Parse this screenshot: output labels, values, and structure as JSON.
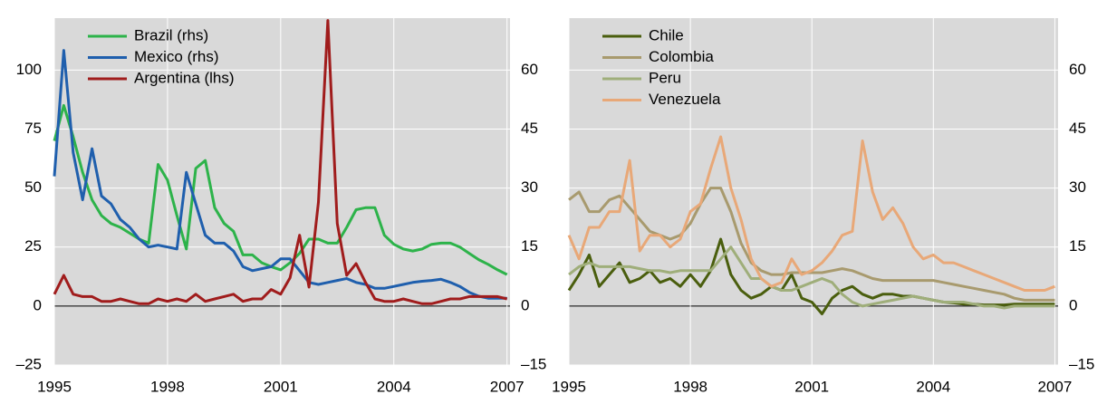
{
  "chart_data": [
    {
      "type": "line",
      "legend": "upper left",
      "grid": true,
      "x": [
        1995,
        1995.25,
        1995.5,
        1995.75,
        1996,
        1996.25,
        1996.5,
        1996.75,
        1997,
        1997.25,
        1997.5,
        1997.75,
        1998,
        1998.25,
        1998.5,
        1998.75,
        1999,
        1999.25,
        1999.5,
        1999.75,
        2000,
        2000.25,
        2000.5,
        2000.75,
        2001,
        2001.25,
        2001.5,
        2001.75,
        2002,
        2002.25,
        2002.5,
        2002.75,
        2003,
        2003.25,
        2003.5,
        2003.75,
        2004,
        2004.25,
        2004.5,
        2004.75,
        2005,
        2005.25,
        2005.5,
        2005.75,
        2006,
        2006.25,
        2006.5,
        2006.75,
        2007
      ],
      "xlim": [
        1995,
        2007.08
      ],
      "xticks": [
        1995,
        1998,
        2001,
        2004,
        2007
      ],
      "ylim": [
        -25,
        122
      ],
      "yticks": [
        {
          "value": -25,
          "label": "–25"
        },
        0,
        25,
        50,
        75,
        100
      ],
      "y2lim": [
        -15,
        73.2
      ],
      "y2ticks": [
        {
          "value": -15,
          "label": "–15"
        },
        0,
        15,
        30,
        45,
        60
      ],
      "series": [
        {
          "name": "Brazil (rhs)",
          "color": "#2db34a",
          "axis": "y2",
          "values": [
            42,
            51,
            43,
            34,
            27,
            23,
            21,
            20,
            18.5,
            17,
            16,
            36,
            32,
            23,
            14.5,
            35,
            37,
            25,
            21,
            19,
            13,
            13,
            11,
            10,
            9.2,
            11,
            13.4,
            17,
            17,
            16,
            16,
            20,
            24.5,
            25,
            25,
            18,
            15.7,
            14.5,
            14,
            14.5,
            15.7,
            16,
            16,
            15,
            13.4,
            11.8,
            10.6,
            9.2,
            8
          ]
        },
        {
          "name": "Mexico (rhs)",
          "color": "#1f5fad",
          "axis": "y2",
          "values": [
            33,
            65,
            39,
            27,
            40,
            28,
            26,
            22,
            20,
            17,
            15,
            15.5,
            15,
            14.5,
            34,
            26,
            18,
            16,
            16,
            14,
            10,
            9,
            9.5,
            10,
            12,
            12,
            9,
            6,
            5.5,
            6,
            6.5,
            7,
            6,
            5.5,
            4.5,
            4.5,
            5,
            5.5,
            6,
            6.3,
            6.5,
            6.8,
            6,
            5,
            3.5,
            2.5,
            2,
            2,
            2
          ]
        },
        {
          "name": "Argentina (lhs)",
          "color": "#a01c1c",
          "values": [
            5,
            13,
            5,
            4,
            4,
            2,
            2,
            3,
            2,
            1,
            1,
            3,
            2,
            3,
            2,
            5,
            2,
            3,
            4,
            5,
            2,
            3,
            3,
            7,
            5,
            12,
            30,
            8,
            44,
            121,
            35,
            13,
            18,
            10,
            3,
            2,
            2,
            3,
            2,
            1,
            1,
            2,
            3,
            3,
            4,
            4,
            4,
            4,
            3
          ]
        }
      ]
    },
    {
      "type": "line",
      "legend": "upper left",
      "grid": true,
      "x": [
        1995,
        1995.25,
        1995.5,
        1995.75,
        1996,
        1996.25,
        1996.5,
        1996.75,
        1997,
        1997.25,
        1997.5,
        1997.75,
        1998,
        1998.25,
        1998.5,
        1998.75,
        1999,
        1999.25,
        1999.5,
        1999.75,
        2000,
        2000.25,
        2000.5,
        2000.75,
        2001,
        2001.25,
        2001.5,
        2001.75,
        2002,
        2002.25,
        2002.5,
        2002.75,
        2003,
        2003.25,
        2003.5,
        2003.75,
        2004,
        2004.25,
        2004.5,
        2004.75,
        2005,
        2005.25,
        2005.5,
        2005.75,
        2006,
        2006.25,
        2006.5,
        2006.75,
        2007
      ],
      "xlim": [
        1995,
        2007.08
      ],
      "xticks": [
        1995,
        1998,
        2001,
        2004,
        2007
      ],
      "y2lim": [
        -15,
        73.2
      ],
      "y2ticks": [
        {
          "value": -15,
          "label": "–15"
        },
        0,
        15,
        30,
        45,
        60
      ],
      "series": [
        {
          "name": "Chile",
          "color": "#4a5e0e",
          "axis": "y2",
          "values": [
            4,
            8,
            13,
            5,
            8,
            11,
            6,
            7,
            9,
            6,
            7,
            5,
            8,
            5,
            9,
            17,
            8,
            4,
            2,
            3,
            5,
            4,
            8,
            2,
            1,
            -2,
            2,
            4,
            5,
            3,
            2,
            3,
            3,
            2.5,
            2.5,
            2,
            1.5,
            1,
            0.8,
            0.5,
            0.5,
            0.3,
            0.3,
            0.3,
            0.5,
            0.5,
            0.5,
            0.5,
            0.5
          ]
        },
        {
          "name": "Colombia",
          "color": "#a89a6e",
          "axis": "y2",
          "values": [
            27,
            29,
            24,
            24,
            27,
            28,
            25,
            22,
            19,
            18,
            17,
            18,
            21,
            26,
            30,
            30,
            24,
            16,
            11,
            9,
            8,
            8,
            8.5,
            8.5,
            8.5,
            8.5,
            9,
            9.5,
            9,
            8,
            7,
            6.5,
            6.5,
            6.5,
            6.5,
            6.5,
            6.5,
            6,
            5.5,
            5,
            4.5,
            4,
            3.5,
            3,
            2,
            1.5,
            1.5,
            1.5,
            1.5
          ]
        },
        {
          "name": "Peru",
          "color": "#9fae7a",
          "axis": "y2",
          "values": [
            8,
            10,
            11,
            10,
            10,
            10,
            10,
            9.5,
            9,
            9,
            8.5,
            9,
            9,
            9,
            9,
            12,
            15,
            11,
            7,
            7,
            5,
            4,
            4,
            5,
            6,
            7,
            6,
            3,
            1,
            0,
            0.5,
            1,
            1.5,
            2,
            2.5,
            2,
            1.5,
            1,
            1,
            1,
            0.5,
            0,
            0,
            -0.5,
            0,
            0,
            0,
            0,
            0
          ]
        },
        {
          "name": "Venezuela",
          "color": "#e8a878",
          "axis": "y2",
          "values": [
            18,
            12,
            20,
            20,
            24,
            24,
            37,
            14,
            18,
            18,
            15,
            17,
            24,
            26,
            35,
            43,
            30,
            22,
            12,
            7,
            5,
            6,
            12,
            8,
            9,
            11,
            14,
            18,
            19,
            42,
            29,
            22,
            25,
            21,
            15,
            12,
            13,
            11,
            11,
            10,
            9,
            8,
            7,
            6,
            5,
            4,
            4,
            4,
            5
          ]
        }
      ]
    }
  ]
}
